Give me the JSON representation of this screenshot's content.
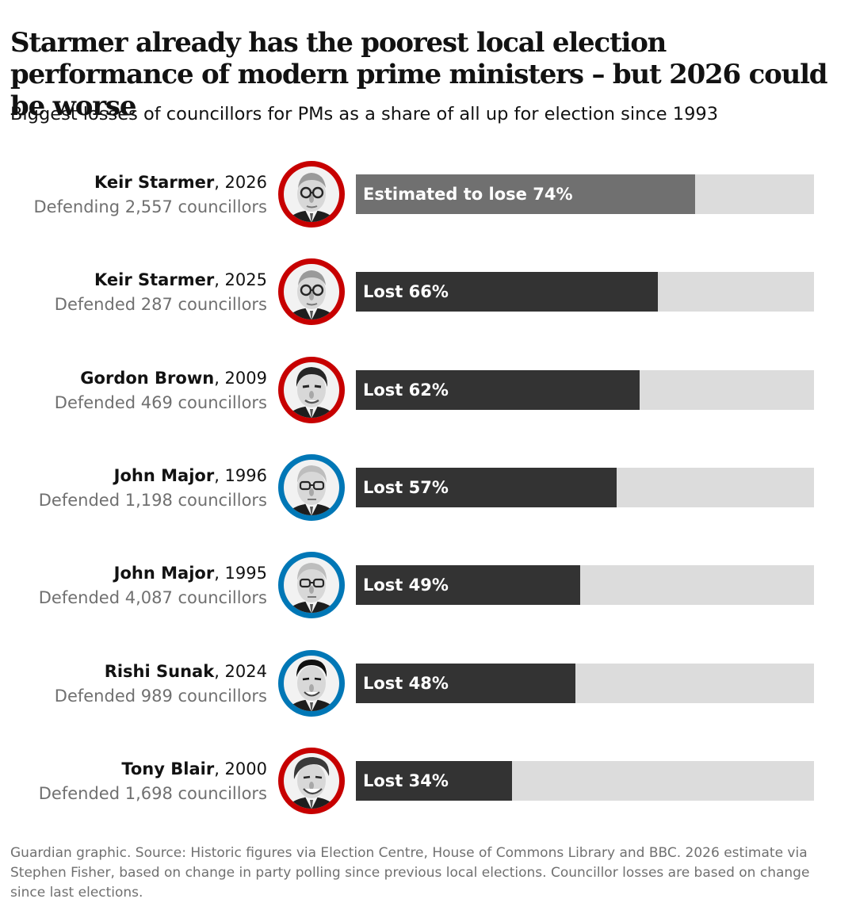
{
  "title": "Starmer already has the poorest local election performance of modern prime ministers – but 2026 could be worse",
  "subtitle": "Biggest losses of councillors for PMs as a share of all up for election since 1993",
  "footer": "Guardian graphic. Source: Historic figures via Election Centre, House of Commons Library and BBC. 2026 estimate via Stephen Fisher, based on change in party polling since previous local elections. Councillor losses are based on change since last elections.",
  "colors": {
    "estimate_bar": "#707070",
    "actual_bar": "#333333",
    "track": "#dcdcdc",
    "labour_ring": "#c70000",
    "conservative_ring": "#0077b6"
  },
  "chart_data": {
    "type": "bar",
    "orientation": "horizontal",
    "xlim": [
      0,
      100
    ],
    "unit": "%",
    "rows": [
      {
        "name": "Keir Starmer",
        "year": "2026",
        "defended": "Defending 2,557 councillors",
        "value": 74,
        "bar_label": "Estimated to lose 74%",
        "estimate": true,
        "party": "labour",
        "avatar": "keir-starmer-portrait"
      },
      {
        "name": "Keir Starmer",
        "year": "2025",
        "defended": "Defended 287 councillors",
        "value": 66,
        "bar_label": "Lost 66%",
        "estimate": false,
        "party": "labour",
        "avatar": "keir-starmer-portrait"
      },
      {
        "name": "Gordon Brown",
        "year": "2009",
        "defended": "Defended 469 councillors",
        "value": 62,
        "bar_label": "Lost 62%",
        "estimate": false,
        "party": "labour",
        "avatar": "gordon-brown-portrait"
      },
      {
        "name": "John Major",
        "year": "1996",
        "defended": "Defended 1,198 councillors",
        "value": 57,
        "bar_label": "Lost 57%",
        "estimate": false,
        "party": "conservative",
        "avatar": "john-major-portrait"
      },
      {
        "name": "John Major",
        "year": "1995",
        "defended": "Defended 4,087 councillors",
        "value": 49,
        "bar_label": "Lost 49%",
        "estimate": false,
        "party": "conservative",
        "avatar": "john-major-portrait"
      },
      {
        "name": "Rishi Sunak",
        "year": "2024",
        "defended": "Defended 989 councillors",
        "value": 48,
        "bar_label": "Lost 48%",
        "estimate": false,
        "party": "conservative",
        "avatar": "rishi-sunak-portrait"
      },
      {
        "name": "Tony Blair",
        "year": "2000",
        "defended": "Defended 1,698 councillors",
        "value": 34,
        "bar_label": "Lost 34%",
        "estimate": false,
        "party": "labour",
        "avatar": "tony-blair-portrait"
      }
    ]
  }
}
